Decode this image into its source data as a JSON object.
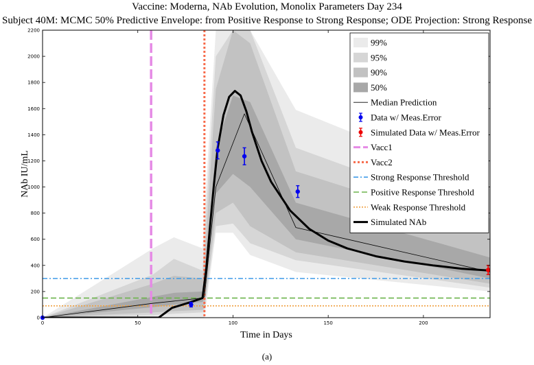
{
  "chart_data": {
    "type": "line",
    "title": "Vaccine: Moderna, NAb Evolution, Monolix Parameters Day 234",
    "subtitle": "Subject 40M: MCMC 50% Predictive Envelope: from Positive Response to Strong Response; ODE Projection: Strong Response",
    "xlabel": "Time in Days",
    "ylabel": "NAb IU/mL",
    "caption": "(a)",
    "xlim": [
      0,
      235
    ],
    "ylim": [
      0,
      2200
    ],
    "xticks": [
      0,
      50,
      100,
      150,
      200
    ],
    "yticks": [
      0,
      200,
      400,
      600,
      800,
      1000,
      1200,
      1400,
      1600,
      1800,
      2000,
      2200
    ],
    "legend_position": "top-right",
    "bands": [
      {
        "name": "99%",
        "color": "#ebebeb",
        "x": [
          0,
          58,
          69,
          84,
          85,
          91,
          100,
          109,
          133,
          235
        ],
        "upper": [
          0,
          530,
          615,
          530,
          800,
          2200,
          2200,
          2200,
          1590,
          990
        ],
        "lower": [
          0,
          0,
          0,
          0,
          0,
          650,
          650,
          480,
          350,
          200
        ]
      },
      {
        "name": "95%",
        "color": "#d6d6d6",
        "x": [
          0,
          58,
          69,
          84,
          85,
          91,
          100,
          109,
          133,
          235
        ],
        "upper": [
          0,
          330,
          450,
          360,
          600,
          2000,
          2200,
          2200,
          1300,
          760
        ],
        "lower": [
          0,
          20,
          30,
          40,
          60,
          700,
          720,
          570,
          440,
          230
        ]
      },
      {
        "name": "90%",
        "color": "#c2c2c2",
        "x": [
          0,
          58,
          69,
          84,
          85,
          91,
          100,
          109,
          133,
          235
        ],
        "upper": [
          0,
          260,
          320,
          300,
          420,
          1750,
          2200,
          2100,
          1120,
          650
        ],
        "lower": [
          0,
          40,
          50,
          60,
          80,
          800,
          880,
          700,
          500,
          260
        ]
      },
      {
        "name": "50%",
        "color": "#a8a8a8",
        "x": [
          0,
          58,
          69,
          84,
          85,
          91,
          100,
          109,
          133,
          235
        ],
        "upper": [
          0,
          160,
          190,
          200,
          260,
          1300,
          1700,
          1650,
          880,
          460
        ],
        "lower": [
          0,
          80,
          100,
          120,
          150,
          950,
          1100,
          1000,
          600,
          300
        ]
      }
    ],
    "series": [
      {
        "name": "Median Prediction",
        "color": "#000000",
        "x": [
          0,
          58,
          84,
          85,
          91,
          106,
          133,
          235
        ],
        "y": [
          0,
          110,
          150,
          160,
          1000,
          1560,
          690,
          350
        ]
      },
      {
        "name": "Simulated NAb",
        "color": "#000000",
        "x": [
          0,
          57,
          61,
          68,
          78,
          84,
          86,
          88,
          90,
          92,
          95,
          98,
          101,
          104,
          107,
          110,
          115,
          120,
          130,
          140,
          150,
          160,
          175,
          190,
          205,
          220,
          235
        ],
        "y": [
          0,
          0,
          0,
          75,
          120,
          150,
          380,
          710,
          1020,
          1300,
          1550,
          1690,
          1735,
          1700,
          1580,
          1420,
          1200,
          1040,
          820,
          680,
          590,
          530,
          470,
          430,
          400,
          375,
          360
        ]
      }
    ],
    "data_points": [
      {
        "name": "Data w/ Meas.Error",
        "color": "#0000ee",
        "x": [
          0,
          78,
          92,
          106,
          134
        ],
        "y": [
          0,
          100,
          1280,
          1235,
          965
        ],
        "err": [
          0,
          18,
          65,
          65,
          45
        ]
      },
      {
        "name": "Simulated Data w/ Meas.Error",
        "color": "#ee0000",
        "x": [
          234
        ],
        "y": [
          365
        ],
        "err": [
          35
        ]
      }
    ],
    "vlines": [
      {
        "name": "Vacc1",
        "x": 57,
        "color": "#e58ae5"
      },
      {
        "name": "Vacc2",
        "x": 85,
        "color": "#f76a4a"
      }
    ],
    "hlines": [
      {
        "name": "Strong Response Threshold",
        "y": 300,
        "color": "#3f9be8"
      },
      {
        "name": "Positive Response Threshold",
        "y": 150,
        "color": "#6bb34a"
      },
      {
        "name": "Weak Response Threshold",
        "y": 90,
        "color": "#f0a040"
      }
    ],
    "legend": [
      "99%",
      "95%",
      "90%",
      "50%",
      "Median Prediction",
      "Data w/ Meas.Error",
      "Simulated Data w/ Meas.Error",
      "Vacc1",
      "Vacc2",
      "Strong Response Threshold",
      "Positive Response Threshold",
      "Weak Response Threshold",
      "Simulated NAb"
    ]
  }
}
